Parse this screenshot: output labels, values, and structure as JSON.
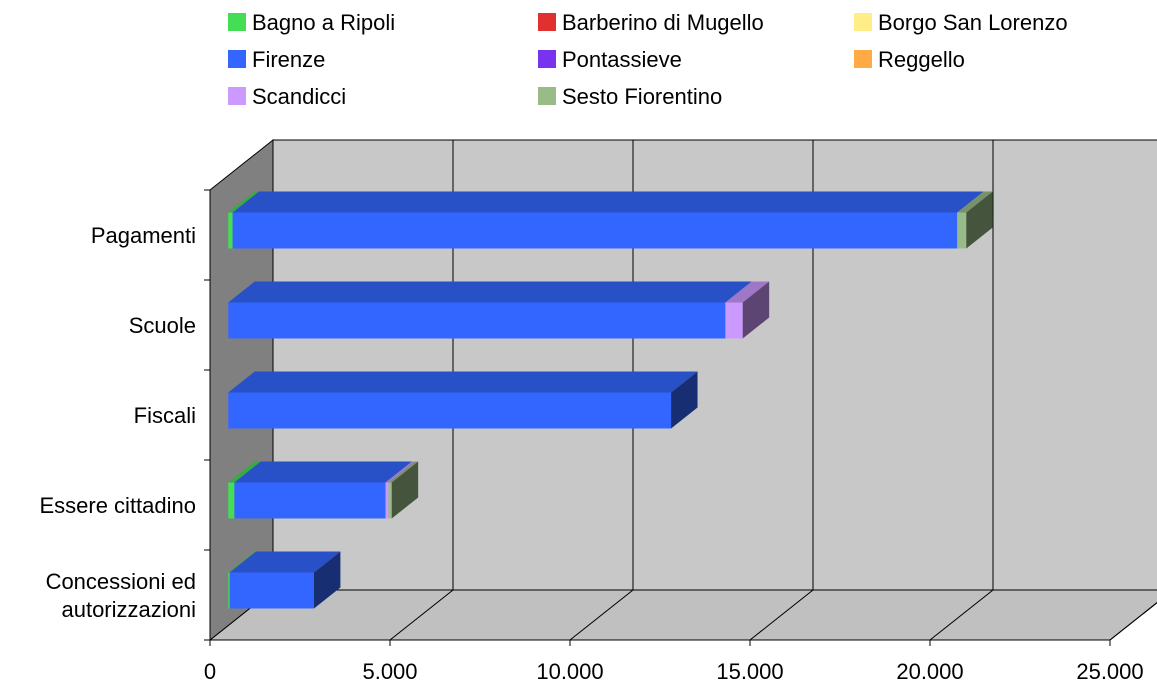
{
  "chart_data": {
    "type": "bar",
    "orientation": "horizontal",
    "stacked": true,
    "three_d": true,
    "title": "",
    "xlabel": "",
    "ylabel": "",
    "xlim": [
      0,
      25000
    ],
    "x_ticks": [
      0,
      5000,
      10000,
      15000,
      20000,
      25000
    ],
    "x_tick_labels": [
      "0",
      "5.000",
      "10.000",
      "15.000",
      "20.000",
      "25.000"
    ],
    "grid": true,
    "legend_position": "top",
    "categories": [
      {
        "label": "Pagamenti",
        "lines": [
          "Pagamenti"
        ]
      },
      {
        "label": "Scuole",
        "lines": [
          "Scuole"
        ]
      },
      {
        "label": "Fiscali",
        "lines": [
          "Fiscali"
        ]
      },
      {
        "label": "Essere cittadino",
        "lines": [
          "Essere cittadino"
        ]
      },
      {
        "label": "Concessioni ed autorizzazioni",
        "lines": [
          "Concessioni ed",
          "autorizzazioni"
        ]
      }
    ],
    "series": [
      {
        "name": "Bagno a Ripoli",
        "color": "#44dd55",
        "values": [
          120,
          0,
          0,
          170,
          40
        ]
      },
      {
        "name": "Barberino di Mugello",
        "color": "#e03030",
        "values": [
          0,
          0,
          0,
          0,
          0
        ]
      },
      {
        "name": "Borgo San Lorenzo",
        "color": "#ffee88",
        "values": [
          0,
          0,
          0,
          0,
          0
        ]
      },
      {
        "name": "Firenze",
        "color": "#3366ff",
        "values": [
          20130,
          13810,
          12300,
          4200,
          2340
        ]
      },
      {
        "name": "Pontassieve",
        "color": "#7733ee",
        "values": [
          0,
          0,
          0,
          0,
          0
        ]
      },
      {
        "name": "Reggello",
        "color": "#ffaa44",
        "values": [
          0,
          0,
          0,
          0,
          0
        ]
      },
      {
        "name": "Scandicci",
        "color": "#cc99ff",
        "values": [
          0,
          480,
          0,
          80,
          0
        ]
      },
      {
        "name": "Sesto Fiorentino",
        "color": "#99bb88",
        "values": [
          250,
          0,
          0,
          90,
          0
        ]
      }
    ]
  }
}
